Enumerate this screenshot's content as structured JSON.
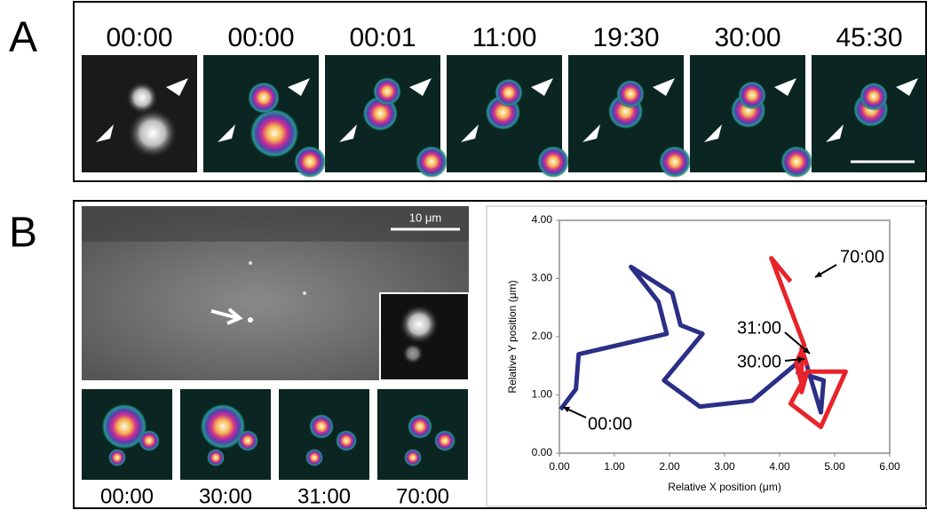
{
  "panel_a": {
    "label": "A",
    "times": [
      "00:00",
      "00:00",
      "00:01",
      "11:00",
      "19:30",
      "30:00",
      "45:30"
    ]
  },
  "panel_b": {
    "label": "B",
    "scale_bar": "10 μm",
    "times": [
      "00:00",
      "30:00",
      "31:00",
      "70:00"
    ]
  },
  "chart_data": {
    "type": "line",
    "xlabel": "Relative X position (μm)",
    "ylabel": "Relative Y position (μm)",
    "xlim": [
      0,
      6
    ],
    "ylim": [
      0,
      4
    ],
    "xticks": [
      {
        "value": 0,
        "label": "0.00"
      },
      {
        "value": 1,
        "label": "1.00"
      },
      {
        "value": 2,
        "label": "2.00"
      },
      {
        "value": 3,
        "label": "3.00"
      },
      {
        "value": 4,
        "label": "4.00"
      },
      {
        "value": 5,
        "label": "5.00"
      },
      {
        "value": 6,
        "label": "6.00"
      }
    ],
    "yticks": [
      {
        "value": 0,
        "label": "0.00"
      },
      {
        "value": 1,
        "label": "1.00"
      },
      {
        "value": 2,
        "label": "2.00"
      },
      {
        "value": 3,
        "label": "3.00"
      },
      {
        "value": 4,
        "label": "4.00"
      }
    ],
    "series": [
      {
        "color": "#2b2f86",
        "x": [
          0.02,
          0.3,
          0.35,
          1.95,
          1.8,
          1.3,
          2.05,
          2.2,
          2.6,
          1.9,
          2.55,
          3.5,
          4.45,
          4.75,
          4.8,
          4.3
        ],
        "values": [
          0.75,
          1.1,
          1.7,
          2.05,
          2.6,
          3.2,
          2.75,
          2.2,
          2.05,
          1.25,
          0.8,
          0.9,
          1.65,
          0.7,
          1.25,
          1.4
        ]
      },
      {
        "color": "#e8232a",
        "x": [
          4.2,
          3.85,
          4.45,
          4.3,
          4.4,
          4.2,
          4.75,
          5.2,
          4.5,
          4.4,
          4.4,
          4.5
        ],
        "values": [
          2.95,
          3.35,
          1.85,
          1.55,
          1.2,
          0.85,
          0.45,
          1.4,
          1.4,
          1.05,
          1.8,
          1.5
        ]
      }
    ],
    "annotations": [
      "00:00",
      "31:00",
      "30:00",
      "70:00"
    ]
  }
}
